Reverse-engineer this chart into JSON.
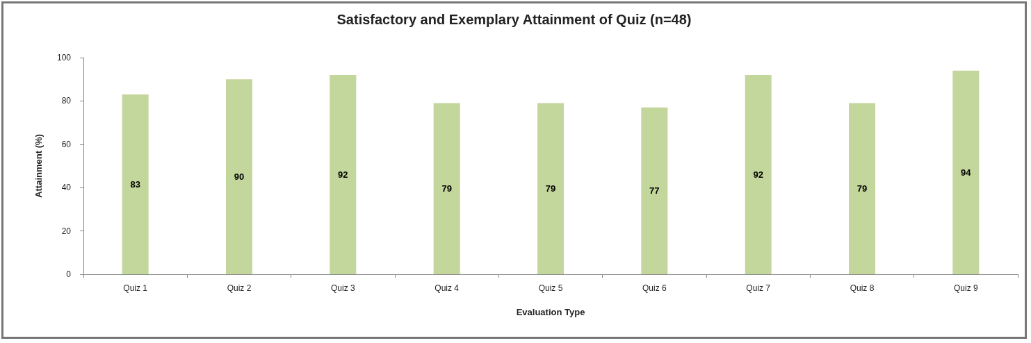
{
  "chart_data": {
    "type": "bar",
    "title": "Satisfactory and Exemplary Attainment of Quiz (n=48)",
    "xlabel": "Evaluation Type",
    "ylabel": "Attainment (%)",
    "categories": [
      "Quiz 1",
      "Quiz 2",
      "Quiz 3",
      "Quiz 4",
      "Quiz 5",
      "Quiz 6",
      "Quiz 7",
      "Quiz 8",
      "Quiz 9"
    ],
    "values": [
      83,
      90,
      92,
      79,
      79,
      77,
      92,
      79,
      94
    ],
    "color": "#c3d69b",
    "ylim": [
      0,
      100
    ],
    "yticks": [
      0,
      20,
      40,
      60,
      80,
      100
    ],
    "grid": false,
    "data_labels": true
  }
}
